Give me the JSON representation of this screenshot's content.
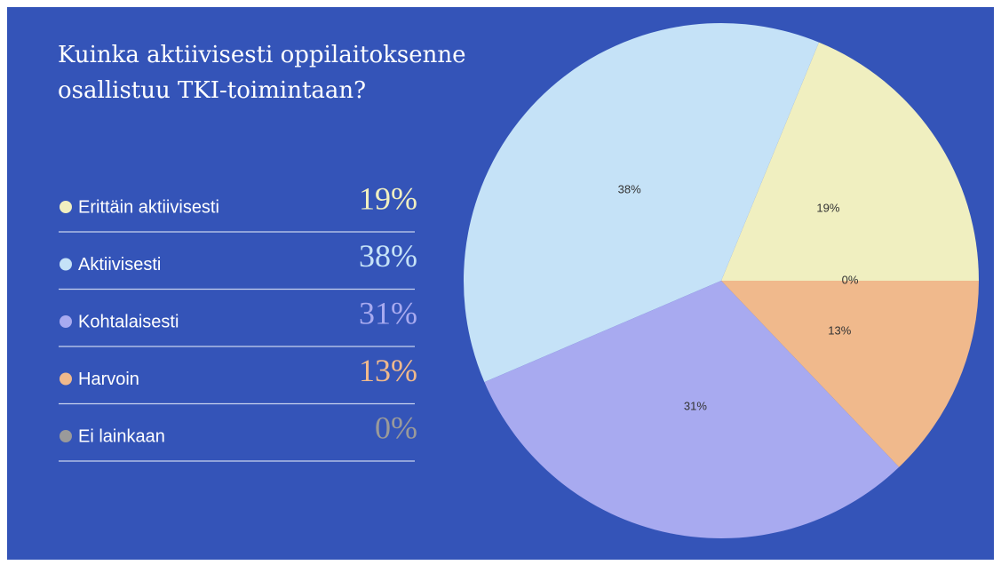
{
  "chart_data": {
    "type": "pie",
    "title": "Kuinka aktiivisesti oppilaitoksenne osallistuu TKI-toimintaan?",
    "categories": [
      "Erittäin aktiivisesti",
      "Aktiivisesti",
      "Kohtalaisesti",
      "Harvoin",
      "Ei lainkaan"
    ],
    "values": [
      19,
      38,
      31,
      13,
      0
    ],
    "value_labels": [
      "19%",
      "38%",
      "31%",
      "13%",
      "0%"
    ],
    "colors": [
      "#f0efc0",
      "#c5e2f7",
      "#a8aaf0",
      "#f0b98c",
      "#9a9a9a"
    ]
  }
}
